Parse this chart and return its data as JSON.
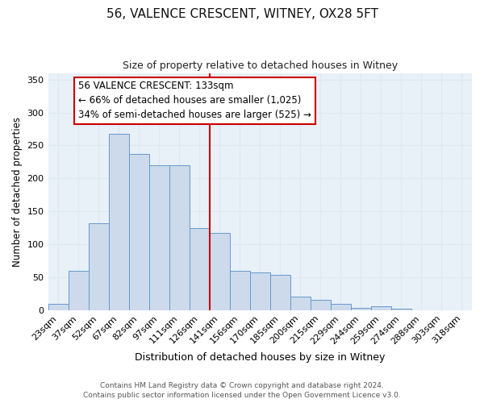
{
  "title": "56, VALENCE CRESCENT, WITNEY, OX28 5FT",
  "subtitle": "Size of property relative to detached houses in Witney",
  "xlabel": "Distribution of detached houses by size in Witney",
  "ylabel": "Number of detached properties",
  "bar_labels": [
    "23sqm",
    "37sqm",
    "52sqm",
    "67sqm",
    "82sqm",
    "97sqm",
    "111sqm",
    "126sqm",
    "141sqm",
    "156sqm",
    "170sqm",
    "185sqm",
    "200sqm",
    "215sqm",
    "229sqm",
    "244sqm",
    "259sqm",
    "274sqm",
    "288sqm",
    "303sqm",
    "318sqm"
  ],
  "bar_heights": [
    10,
    60,
    132,
    268,
    237,
    220,
    220,
    125,
    117,
    60,
    57,
    54,
    20,
    16,
    9,
    4,
    6,
    2,
    0,
    0,
    0
  ],
  "bar_color": "#ccdaeb",
  "bar_edge_color": "#6699cc",
  "ylim": [
    0,
    360
  ],
  "yticks": [
    0,
    50,
    100,
    150,
    200,
    250,
    300,
    350
  ],
  "vline_index": 8,
  "vline_color": "#cc0000",
  "annotation_title": "56 VALENCE CRESCENT: 133sqm",
  "annotation_line1": "← 66% of detached houses are smaller (1,025)",
  "annotation_line2": "34% of semi-detached houses are larger (525) →",
  "annotation_box_color": "#cc0000",
  "footer_line1": "Contains HM Land Registry data © Crown copyright and database right 2024.",
  "footer_line2": "Contains public sector information licensed under the Open Government Licence v3.0.",
  "grid_color": "#dde8f0",
  "background_color": "#e8f0f8",
  "plot_background": "#ffffff"
}
